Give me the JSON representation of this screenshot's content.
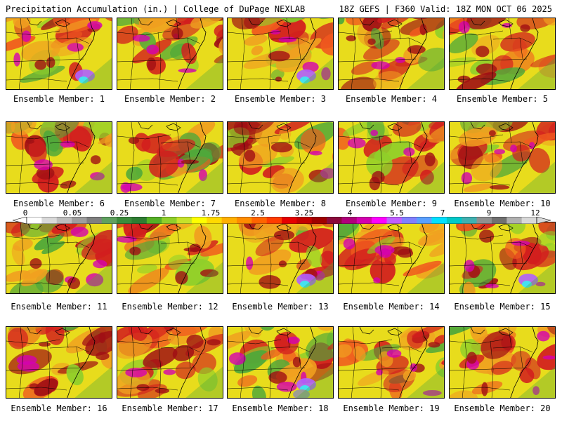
{
  "header": {
    "title_left": "Precipitation Accumulation (in.) | College of DuPage NEXLAB",
    "title_right": "18Z GEFS | F360 Valid: 18Z MON OCT 06 2025"
  },
  "panels": [
    {
      "member": 1,
      "caption": "Ensemble Member: 1"
    },
    {
      "member": 2,
      "caption": "Ensemble Member: 2"
    },
    {
      "member": 3,
      "caption": "Ensemble Member: 3"
    },
    {
      "member": 4,
      "caption": "Ensemble Member: 4"
    },
    {
      "member": 5,
      "caption": "Ensemble Member: 5"
    },
    {
      "member": 6,
      "caption": "Ensemble Member: 6"
    },
    {
      "member": 7,
      "caption": "Ensemble Member: 7"
    },
    {
      "member": 8,
      "caption": "Ensemble Member: 8"
    },
    {
      "member": 9,
      "caption": "Ensemble Member: 9"
    },
    {
      "member": 10,
      "caption": "Ensemble Member: 10"
    },
    {
      "member": 11,
      "caption": "Ensemble Member: 11"
    },
    {
      "member": 12,
      "caption": "Ensemble Member: 12"
    },
    {
      "member": 13,
      "caption": "Ensemble Member: 13"
    },
    {
      "member": 14,
      "caption": "Ensemble Member: 14"
    },
    {
      "member": 15,
      "caption": "Ensemble Member: 15"
    },
    {
      "member": 16,
      "caption": "Ensemble Member: 16"
    },
    {
      "member": 17,
      "caption": "Ensemble Member: 17"
    },
    {
      "member": 18,
      "caption": "Ensemble Member: 18"
    },
    {
      "member": 19,
      "caption": "Ensemble Member: 19"
    },
    {
      "member": 20,
      "caption": "Ensemble Member: 20"
    }
  ],
  "colorbar": {
    "labels": [
      "0",
      "0.05",
      "0.25",
      "1",
      "1.75",
      "2.5",
      "3.25",
      "4",
      "5.5",
      "7",
      "9",
      "12"
    ],
    "colors": [
      "#ffffff",
      "#d9d9d9",
      "#bdbdbd",
      "#9e9e9e",
      "#7f7f7f",
      "#5fa05f",
      "#3c8c3c",
      "#2e7d32",
      "#55b026",
      "#8fcf2a",
      "#c6e22a",
      "#ffff00",
      "#ffd900",
      "#ffb000",
      "#ff8c00",
      "#ff6400",
      "#ff3c00",
      "#e60000",
      "#c40000",
      "#a00000",
      "#8b0a3c",
      "#b0007a",
      "#d400b0",
      "#ff00ff",
      "#c060ff",
      "#8080ff",
      "#5aa0ff",
      "#00e0ff",
      "#00c8c8",
      "#40b0b0",
      "#909090",
      "#707070",
      "#b0b0b0",
      "#d8d8d8"
    ]
  },
  "colors": {
    "green": "#4fa83a",
    "light_green": "#8fcf2a",
    "yellow": "#e8dc1c",
    "orange": "#f0a020",
    "red_orange": "#f05a1e",
    "red": "#d21e1e",
    "dark_red": "#a00f14",
    "magenta": "#d400b0",
    "purple": "#b060ff",
    "cyan": "#40e8f0",
    "gray": "#9a9a9a"
  }
}
